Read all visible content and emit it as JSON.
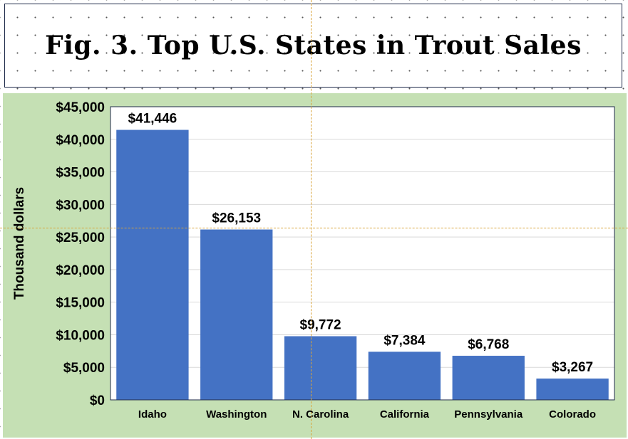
{
  "title": "Fig. 3. Top U.S. States in Trout Sales",
  "colors": {
    "bar": "#4472c4",
    "chart_background": "#c5e0b4",
    "plot_background": "#ffffff",
    "gridline": "#d9d9d9",
    "plot_border": "#1f2a4a"
  },
  "chart_data": {
    "type": "bar",
    "title": "Fig. 3. Top U.S. States in Trout Sales",
    "xlabel": "",
    "ylabel": "Thousand dollars",
    "categories": [
      "Idaho",
      "Washington",
      "N. Carolina",
      "California",
      "Pennsylvania",
      "Colorado"
    ],
    "values": [
      41446,
      26153,
      9772,
      7384,
      6768,
      3267
    ],
    "value_labels": [
      "$41,446",
      "$26,153",
      "$9,772",
      "$7,384",
      "$6,768",
      "$3,267"
    ],
    "ylim": [
      0,
      45000
    ],
    "yticks": [
      0,
      5000,
      10000,
      15000,
      20000,
      25000,
      30000,
      35000,
      40000,
      45000
    ],
    "ytick_labels": [
      "$0",
      "$5,000",
      "$10,000",
      "$15,000",
      "$20,000",
      "$25,000",
      "$30,000",
      "$35,000",
      "$40,000",
      "$45,000"
    ],
    "grid": true,
    "legend": "none"
  }
}
